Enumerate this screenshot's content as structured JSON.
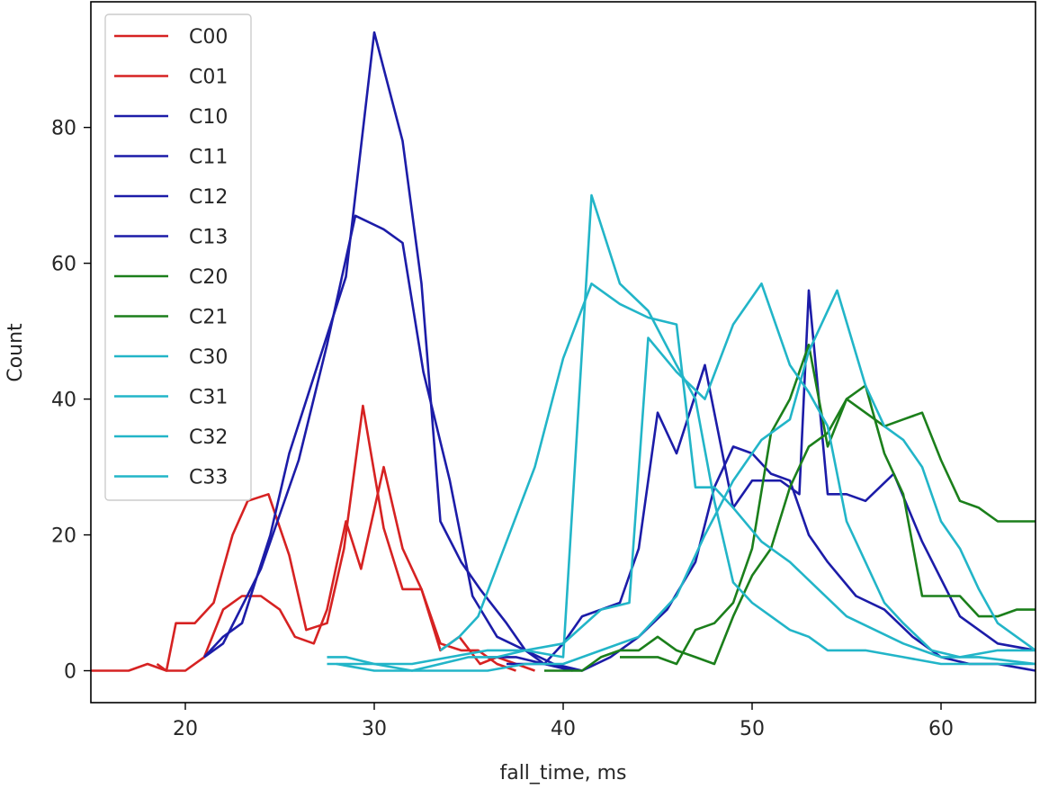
{
  "chart_data": {
    "type": "line",
    "title": "",
    "xlabel": "fall_time, ms",
    "ylabel": "Count",
    "xlim": [
      15,
      65
    ],
    "ylim": [
      -4.7,
      98.5
    ],
    "xticks": [
      20,
      30,
      40,
      50,
      60
    ],
    "yticks": [
      0,
      20,
      40,
      60,
      80
    ],
    "grid": false,
    "legend_position": "top-left",
    "series": [
      {
        "name": "C00",
        "color": "#d62222",
        "points": [
          [
            15,
            0
          ],
          [
            16,
            0
          ],
          [
            17,
            0
          ],
          [
            18,
            1
          ],
          [
            19,
            0
          ],
          [
            19.5,
            7
          ],
          [
            20.5,
            7
          ],
          [
            21.5,
            10
          ],
          [
            22.5,
            20
          ],
          [
            23.3,
            25
          ],
          [
            24.4,
            26
          ],
          [
            25.5,
            17
          ],
          [
            26.4,
            6
          ],
          [
            27.5,
            7
          ],
          [
            28.4,
            18
          ],
          [
            29.4,
            39
          ],
          [
            30.5,
            21
          ],
          [
            31.5,
            12
          ],
          [
            32.5,
            12
          ],
          [
            33.5,
            4
          ],
          [
            34.6,
            3
          ],
          [
            35.5,
            3
          ],
          [
            36.5,
            1
          ],
          [
            37.5,
            0
          ]
        ]
      },
      {
        "name": "C01",
        "color": "#d62222",
        "points": [
          [
            18.5,
            1
          ],
          [
            19,
            0
          ],
          [
            20,
            0
          ],
          [
            21,
            2
          ],
          [
            22,
            9
          ],
          [
            23,
            11
          ],
          [
            24,
            11
          ],
          [
            25,
            9
          ],
          [
            25.8,
            5
          ],
          [
            26.8,
            4
          ],
          [
            27.5,
            9
          ],
          [
            28.5,
            22
          ],
          [
            29.3,
            15
          ],
          [
            30.5,
            30
          ],
          [
            31.5,
            18
          ],
          [
            32.5,
            12
          ],
          [
            33.5,
            3
          ],
          [
            34.5,
            5
          ],
          [
            35.6,
            1
          ],
          [
            36.5,
            2
          ],
          [
            37.5,
            1
          ],
          [
            38.5,
            0
          ]
        ]
      },
      {
        "name": "C10",
        "color": "#1c1ca8",
        "points": [
          [
            21,
            2
          ],
          [
            22,
            5
          ],
          [
            23,
            7
          ],
          [
            24.5,
            20
          ],
          [
            25.5,
            32
          ],
          [
            27,
            45
          ],
          [
            28.5,
            58
          ],
          [
            30,
            94
          ],
          [
            31.5,
            78
          ],
          [
            32.5,
            57
          ],
          [
            33.5,
            22
          ],
          [
            34.6,
            16
          ],
          [
            35.6,
            12
          ],
          [
            37,
            7
          ],
          [
            38,
            3
          ],
          [
            39,
            1
          ],
          [
            40.5,
            0
          ]
        ]
      },
      {
        "name": "C11",
        "color": "#1c1ca8",
        "points": [
          [
            21,
            2
          ],
          [
            22,
            4
          ],
          [
            24,
            15
          ],
          [
            26,
            31
          ],
          [
            27.5,
            48
          ],
          [
            29,
            67
          ],
          [
            30.5,
            65
          ],
          [
            31.5,
            63
          ],
          [
            32.6,
            44
          ],
          [
            34,
            28
          ],
          [
            35.2,
            11
          ],
          [
            36.5,
            5
          ],
          [
            38,
            3
          ],
          [
            39.5,
            1
          ],
          [
            41,
            0
          ]
        ]
      },
      {
        "name": "C12",
        "color": "#1c1ca8",
        "points": [
          [
            36,
            2
          ],
          [
            37.5,
            2
          ],
          [
            39,
            1
          ],
          [
            41,
            0
          ],
          [
            42.5,
            2
          ],
          [
            44,
            5
          ],
          [
            45.5,
            9
          ],
          [
            47,
            16
          ],
          [
            48,
            27
          ],
          [
            49,
            33
          ],
          [
            50,
            32
          ],
          [
            51,
            29
          ],
          [
            52,
            28
          ],
          [
            53,
            20
          ],
          [
            54,
            16
          ],
          [
            55.5,
            11
          ],
          [
            57,
            9
          ],
          [
            58.5,
            5
          ],
          [
            60,
            2
          ],
          [
            61.5,
            1
          ],
          [
            63,
            1
          ],
          [
            65,
            0
          ]
        ]
      },
      {
        "name": "C13",
        "color": "#1c1ca8",
        "points": [
          [
            37,
            1
          ],
          [
            39,
            1
          ],
          [
            40,
            4
          ],
          [
            41,
            8
          ],
          [
            42,
            9
          ],
          [
            43,
            10
          ],
          [
            44,
            18
          ],
          [
            45,
            38
          ],
          [
            46,
            32
          ],
          [
            47.5,
            45
          ],
          [
            49,
            24
          ],
          [
            50,
            28
          ],
          [
            51.5,
            28
          ],
          [
            52.5,
            26
          ],
          [
            53,
            56
          ],
          [
            54,
            26
          ],
          [
            55,
            26
          ],
          [
            56,
            25
          ],
          [
            57.5,
            29
          ],
          [
            59,
            19
          ],
          [
            61,
            8
          ],
          [
            63,
            4
          ],
          [
            65,
            3
          ]
        ]
      },
      {
        "name": "C20",
        "color": "#1b7f1b",
        "points": [
          [
            43,
            2
          ],
          [
            44,
            2
          ],
          [
            45,
            2
          ],
          [
            46,
            1
          ],
          [
            47,
            6
          ],
          [
            48,
            7
          ],
          [
            49,
            10
          ],
          [
            50,
            18
          ],
          [
            51,
            35
          ],
          [
            52,
            40
          ],
          [
            53,
            48
          ],
          [
            54,
            33
          ],
          [
            55,
            40
          ],
          [
            56,
            42
          ],
          [
            57,
            32
          ],
          [
            58,
            26
          ],
          [
            59,
            11
          ],
          [
            60,
            11
          ],
          [
            61,
            11
          ],
          [
            62,
            8
          ],
          [
            63,
            8
          ],
          [
            64,
            9
          ],
          [
            65,
            9
          ]
        ]
      },
      {
        "name": "C21",
        "color": "#1b7f1b",
        "points": [
          [
            39,
            0
          ],
          [
            40,
            0
          ],
          [
            41,
            0
          ],
          [
            42,
            2
          ],
          [
            43,
            3
          ],
          [
            44,
            3
          ],
          [
            45,
            5
          ],
          [
            46,
            3
          ],
          [
            47,
            2
          ],
          [
            48,
            1
          ],
          [
            49,
            8
          ],
          [
            50,
            14
          ],
          [
            51,
            18
          ],
          [
            52,
            27
          ],
          [
            53,
            33
          ],
          [
            54,
            35
          ],
          [
            55,
            40
          ],
          [
            56,
            38
          ],
          [
            57,
            36
          ],
          [
            58,
            37
          ],
          [
            59,
            38
          ],
          [
            60,
            31
          ],
          [
            61,
            25
          ],
          [
            62,
            24
          ],
          [
            63,
            22
          ],
          [
            65,
            22
          ]
        ]
      },
      {
        "name": "C30",
        "color": "#22b5c8",
        "points": [
          [
            33.5,
            3
          ],
          [
            34.5,
            5
          ],
          [
            35.5,
            8
          ],
          [
            37,
            19
          ],
          [
            38.5,
            30
          ],
          [
            40,
            46
          ],
          [
            41.5,
            57
          ],
          [
            43,
            54
          ],
          [
            44.5,
            52
          ],
          [
            46,
            51
          ],
          [
            47,
            27
          ],
          [
            48,
            27
          ],
          [
            49,
            24
          ],
          [
            50.5,
            19
          ],
          [
            52,
            16
          ],
          [
            53.5,
            12
          ],
          [
            55,
            8
          ],
          [
            56.5,
            6
          ],
          [
            58,
            4
          ],
          [
            60,
            2
          ],
          [
            62,
            2
          ],
          [
            65,
            1
          ]
        ]
      },
      {
        "name": "C31",
        "color": "#22b5c8",
        "points": [
          [
            27.5,
            2
          ],
          [
            28.5,
            2
          ],
          [
            30,
            1
          ],
          [
            32,
            0
          ],
          [
            33.5,
            1
          ],
          [
            35,
            2
          ],
          [
            36.5,
            2
          ],
          [
            38,
            3
          ],
          [
            40,
            4
          ],
          [
            42,
            9
          ],
          [
            43.5,
            10
          ],
          [
            44.5,
            49
          ],
          [
            46,
            44
          ],
          [
            47.5,
            40
          ],
          [
            49,
            51
          ],
          [
            50.5,
            57
          ],
          [
            52,
            45
          ],
          [
            53,
            41
          ],
          [
            54,
            36
          ],
          [
            55,
            22
          ],
          [
            56,
            16
          ],
          [
            57,
            10
          ],
          [
            58,
            7
          ],
          [
            59.5,
            3
          ],
          [
            61,
            2
          ],
          [
            63,
            3
          ],
          [
            65,
            3
          ]
        ]
      },
      {
        "name": "C32",
        "color": "#22b5c8",
        "points": [
          [
            27.5,
            1
          ],
          [
            30,
            1
          ],
          [
            32,
            1
          ],
          [
            34,
            2
          ],
          [
            36,
            3
          ],
          [
            38,
            3
          ],
          [
            40,
            2
          ],
          [
            41.5,
            70
          ],
          [
            43,
            57
          ],
          [
            44.5,
            53
          ],
          [
            46,
            45
          ],
          [
            47,
            40
          ],
          [
            48,
            25
          ],
          [
            49,
            13
          ],
          [
            50,
            10
          ],
          [
            51,
            8
          ],
          [
            52,
            6
          ],
          [
            53,
            5
          ],
          [
            54,
            3
          ],
          [
            56,
            3
          ],
          [
            58,
            2
          ],
          [
            60,
            1
          ],
          [
            62,
            1
          ],
          [
            65,
            1
          ]
        ]
      },
      {
        "name": "C33",
        "color": "#22b5c8",
        "points": [
          [
            28,
            1
          ],
          [
            30,
            0
          ],
          [
            32,
            0
          ],
          [
            34,
            0
          ],
          [
            36,
            0
          ],
          [
            38,
            1
          ],
          [
            40,
            1
          ],
          [
            42,
            3
          ],
          [
            44,
            5
          ],
          [
            46,
            11
          ],
          [
            47.5,
            20
          ],
          [
            49,
            28
          ],
          [
            50.5,
            34
          ],
          [
            52,
            37
          ],
          [
            53,
            47
          ],
          [
            54.5,
            56
          ],
          [
            56,
            42
          ],
          [
            57,
            36
          ],
          [
            58,
            34
          ],
          [
            59,
            30
          ],
          [
            60,
            22
          ],
          [
            61,
            18
          ],
          [
            62,
            12
          ],
          [
            63,
            7
          ],
          [
            64,
            5
          ],
          [
            65,
            3
          ]
        ]
      }
    ]
  }
}
